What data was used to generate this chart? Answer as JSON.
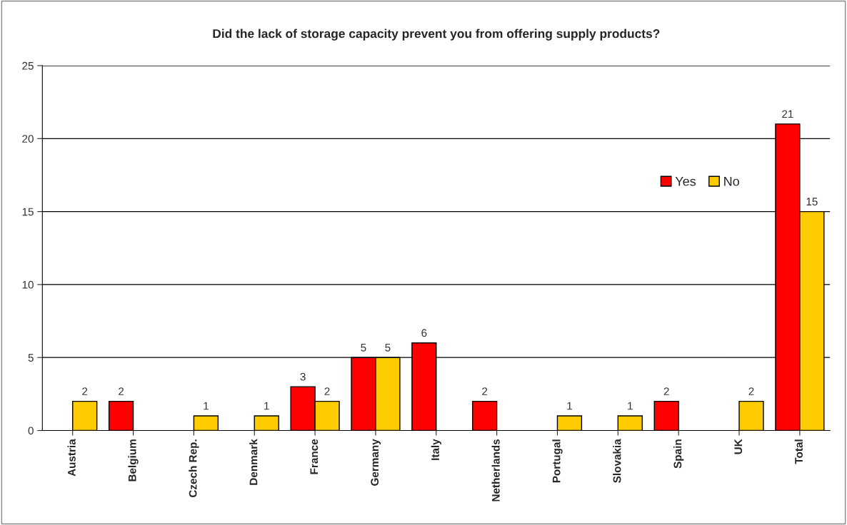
{
  "chart_data": {
    "type": "bar",
    "title": "Did the lack of storage capacity prevent you from offering supply products?",
    "categories": [
      "Austria",
      "Belgium",
      "Czech Rep.",
      "Denmark",
      "France",
      "Germany",
      "Italy",
      "Netherlands",
      "Portugal",
      "Slovakia",
      "Spain",
      "UK",
      "Total"
    ],
    "series": [
      {
        "name": "Yes",
        "color": "#ff0000",
        "values": [
          null,
          2,
          null,
          null,
          3,
          5,
          6,
          2,
          null,
          null,
          2,
          null,
          21
        ]
      },
      {
        "name": "No",
        "color": "#ffcc00",
        "values": [
          2,
          null,
          1,
          1,
          2,
          5,
          null,
          null,
          1,
          1,
          null,
          2,
          15
        ]
      }
    ],
    "ylim": [
      0,
      25
    ],
    "yticks": [
      0,
      5,
      10,
      15,
      20,
      25
    ],
    "grid": "y",
    "legend": "right",
    "data_labels": true
  }
}
